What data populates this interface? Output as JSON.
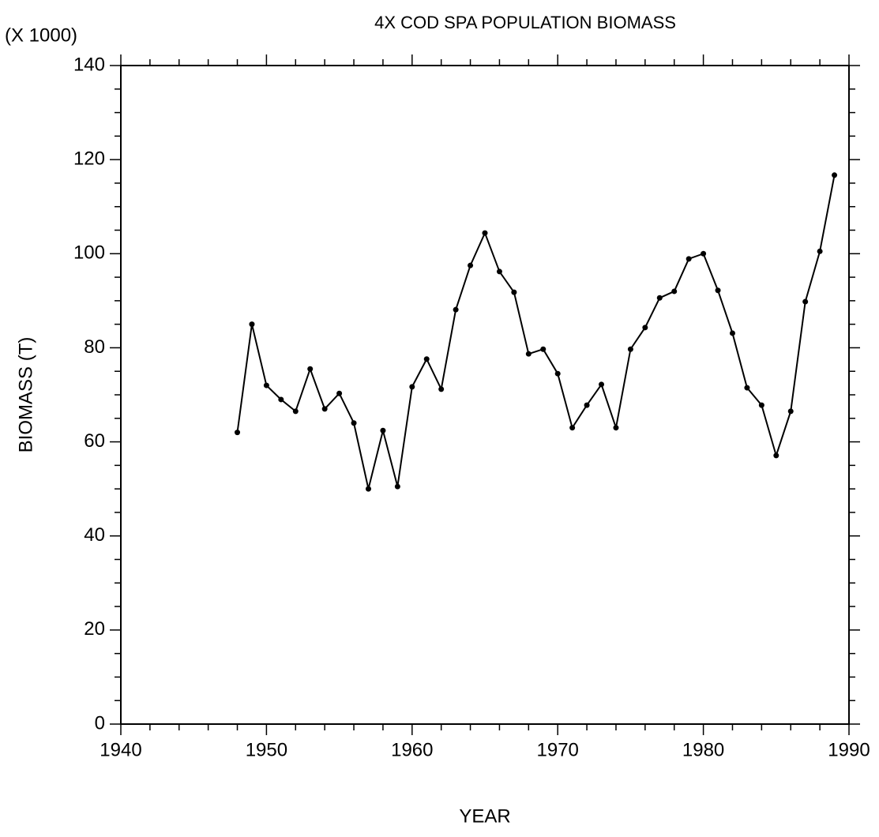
{
  "chart_data": {
    "type": "line",
    "title": "4X COD SPA POPULATION BIOMASS",
    "y_multiplier_label": "(X 1000)",
    "x_label": "YEAR",
    "y_label": "BIOMASS (T)",
    "x": [
      1948,
      1949,
      1950,
      1951,
      1952,
      1953,
      1954,
      1955,
      1956,
      1957,
      1958,
      1959,
      1960,
      1961,
      1962,
      1963,
      1964,
      1965,
      1966,
      1967,
      1968,
      1969,
      1970,
      1971,
      1972,
      1973,
      1974,
      1975,
      1976,
      1977,
      1978,
      1979,
      1980,
      1981,
      1982,
      1983,
      1984,
      1985,
      1986,
      1987,
      1988,
      1989
    ],
    "series": [
      {
        "color": "#000000",
        "values": [
          62,
          85,
          72,
          69,
          66.5,
          75.5,
          67,
          70.3,
          64,
          50,
          62.4,
          50.5,
          71.7,
          77.6,
          71.2,
          88.1,
          97.5,
          104.4,
          96.2,
          91.8,
          78.7,
          79.7,
          74.5,
          63,
          67.8,
          72.2,
          63,
          79.7,
          84.3,
          90.6,
          92,
          98.9,
          100,
          92.2,
          83.1,
          71.5,
          67.8,
          57.1,
          66.5,
          89.8,
          100.5,
          116.7
        ]
      }
    ],
    "xlim": [
      1940,
      1990
    ],
    "xticks": [
      1940,
      1950,
      1960,
      1970,
      1980,
      1990
    ],
    "ylim": [
      0,
      140
    ],
    "yticks": [
      0,
      20,
      40,
      60,
      80,
      100,
      120,
      140
    ]
  }
}
